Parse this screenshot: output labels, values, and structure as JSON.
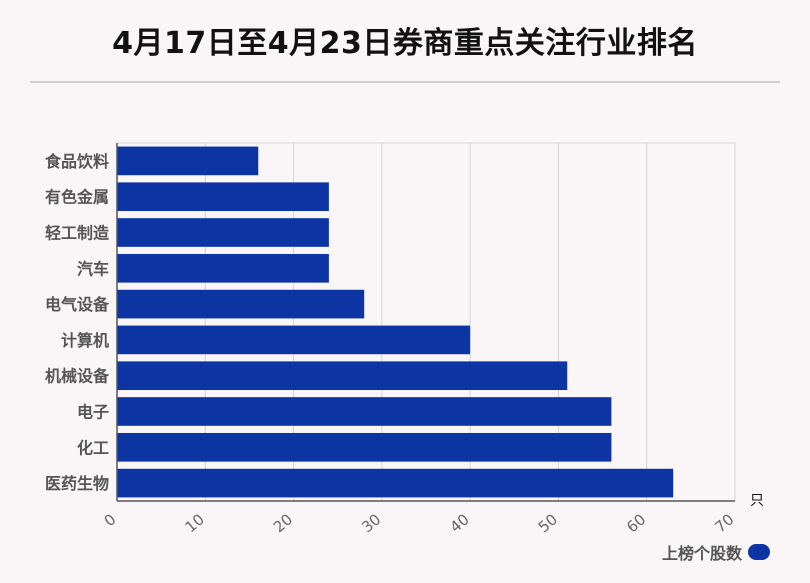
{
  "title": "4月17日至4月23日券商重点关注行业排名",
  "chart_data": {
    "type": "bar",
    "orientation": "horizontal",
    "categories": [
      "食品饮料",
      "有色金属",
      "轻工制造",
      "汽车",
      "电气设备",
      "计算机",
      "机械设备",
      "电子",
      "化工",
      "医药生物"
    ],
    "series": [
      {
        "name": "上榜个股数",
        "values": [
          16,
          24,
          24,
          24,
          28,
          40,
          51,
          56,
          56,
          63
        ]
      }
    ],
    "xlim": [
      0,
      70
    ],
    "xticks": [
      0,
      10,
      20,
      30,
      40,
      50,
      60,
      70
    ],
    "unit": "只",
    "grid": true,
    "legend_position": "bottom-right",
    "bar_color": "#0d34a3"
  }
}
